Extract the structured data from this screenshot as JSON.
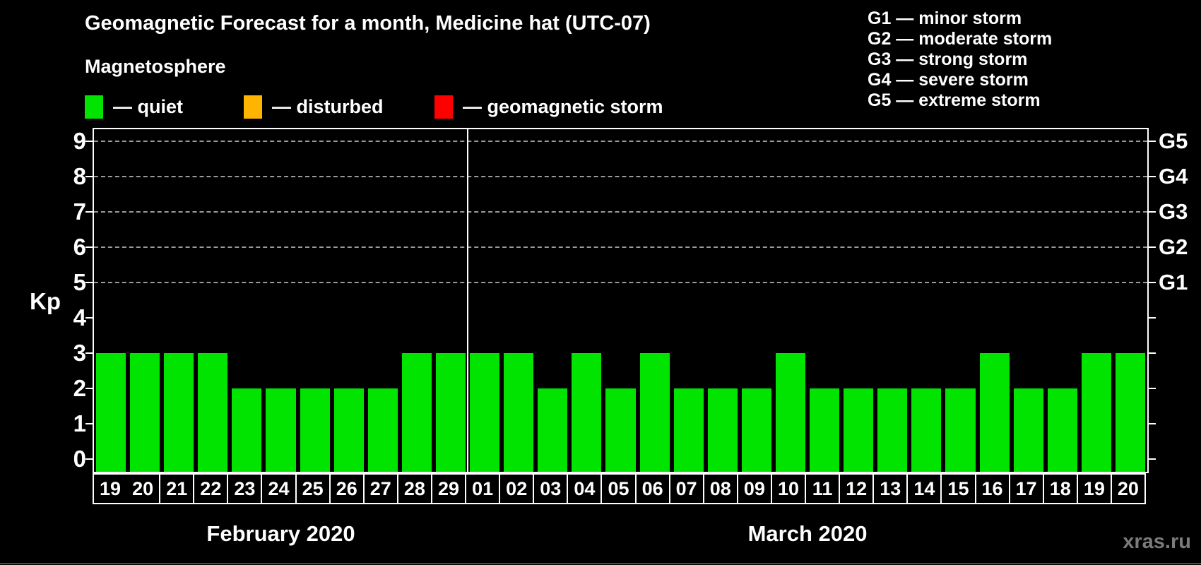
{
  "title": "Geomagnetic Forecast for a month, Medicine hat (UTC-07)",
  "subtitle": "Magnetosphere",
  "legend": {
    "items": [
      {
        "label": "— quiet",
        "color": "#00e400"
      },
      {
        "label": "— disturbed",
        "color": "#ffb400"
      },
      {
        "label": "— geomagnetic storm",
        "color": "#ff0000"
      }
    ]
  },
  "storm_scale_legend": [
    "G1 — minor storm",
    "G2 — moderate storm",
    "G3 — strong storm",
    "G4 — severe storm",
    "G5 — extreme storm"
  ],
  "watermark": "xras.ru",
  "chart_data": {
    "type": "bar",
    "title": "Geomagnetic Forecast for a month, Medicine hat (UTC-07)",
    "ylabel": "Kp",
    "categories": [
      "19",
      "20",
      "21",
      "22",
      "23",
      "24",
      "25",
      "26",
      "27",
      "28",
      "29",
      "01",
      "02",
      "03",
      "04",
      "05",
      "06",
      "07",
      "08",
      "09",
      "10",
      "11",
      "12",
      "13",
      "14",
      "15",
      "16",
      "17",
      "18",
      "19",
      "20"
    ],
    "values": [
      3,
      3,
      3,
      3,
      2,
      2,
      2,
      2,
      2,
      3,
      3,
      3,
      3,
      2,
      3,
      2,
      3,
      2,
      2,
      2,
      3,
      2,
      2,
      2,
      2,
      2,
      3,
      2,
      2,
      3,
      3
    ],
    "month_split_index": 11,
    "month_labels": [
      "February 2020",
      "March 2020"
    ],
    "y_ticks": [
      0,
      1,
      2,
      3,
      4,
      5,
      6,
      7,
      8,
      9
    ],
    "gridline_levels": [
      5,
      6,
      7,
      8,
      9
    ],
    "right_axis": [
      {
        "label": "G5",
        "kp": 9
      },
      {
        "label": "G4",
        "kp": 8
      },
      {
        "label": "G3",
        "kp": 7
      },
      {
        "label": "G2",
        "kp": 6
      },
      {
        "label": "G1",
        "kp": 5
      }
    ],
    "bar_color": "#00e400",
    "ylim": [
      -0.36,
      9.34
    ],
    "grid": "horizontal dashed at storm levels",
    "legend_position": "top-left and top-right"
  }
}
